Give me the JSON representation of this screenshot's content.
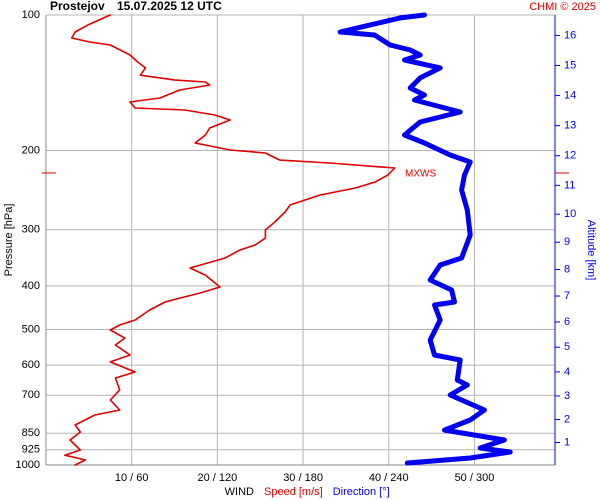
{
  "chart_data": {
    "type": "line",
    "station": "Prostejov",
    "date": "15.07.2025 12 UTC",
    "credit": "CHMI © 2025",
    "ylabel": "Pressure [hPa]",
    "y2label": "Altitude [km]",
    "legend_title": "WIND",
    "ylog": true,
    "grid": true,
    "ylim": [
      1000,
      100
    ],
    "yticks": [
      100,
      200,
      300,
      400,
      500,
      600,
      700,
      850,
      925,
      1000
    ],
    "xlim": [
      0,
      59.4
    ],
    "x2lim": [
      0,
      356.4
    ],
    "xticks": [
      {
        "value": 10,
        "label": "10 / 60"
      },
      {
        "value": 20,
        "label": "20 / 120"
      },
      {
        "value": 30,
        "label": "30 / 180"
      },
      {
        "value": 40,
        "label": "40 / 240"
      },
      {
        "value": 50,
        "label": "50 / 300"
      }
    ],
    "y2ticks": [
      1,
      2,
      3,
      4,
      5,
      6,
      7,
      8,
      9,
      10,
      11,
      12,
      13,
      14,
      15,
      16
    ],
    "max_wind": {
      "label": "MXWS",
      "pressure": 224.4
    },
    "series": [
      {
        "name": "Speed [m/s]",
        "color": "#e00000",
        "axis": "x",
        "pressure": [
          100,
          105.2,
          109.1,
          112.5,
          114.8,
          116.6,
          122.7,
          127.2,
          131.1,
          136.1,
          139.5,
          140.9,
          143.1,
          146.8,
          152.9,
          156.1,
          160.9,
          162.6,
          166.8,
          171.1,
          178.3,
          184.8,
          192.5,
          199.5,
          202.6,
          210.1,
          213.3,
          218.8,
          226.8,
          235,
          242.3,
          251.2,
          264.3,
          274,
          288.4,
          300.5,
          313.1,
          324.4,
          333,
          346.7,
          365,
          378.4,
          402.2,
          414.8,
          425.6,
          434.3,
          452.4,
          476.2,
          488.6,
          501.2,
          522.3,
          541.2,
          569.6,
          590.2,
          621.4,
          640.6,
          681,
          717,
          754.8,
          774.3,
          815,
          844.6,
          880,
          926,
          950.9,
          974.7,
          1000
        ],
        "values": [
          7.5,
          4.9,
          3.4,
          3.0,
          5.1,
          7.5,
          9.8,
          10.7,
          11.6,
          11.0,
          15.1,
          18.6,
          19.1,
          15.6,
          13.3,
          9.8,
          10.4,
          16.2,
          19.7,
          21.5,
          19.1,
          18.6,
          17.4,
          21.5,
          25.6,
          27.3,
          33.1,
          40.7,
          39.9,
          38.4,
          36.1,
          32.0,
          28.5,
          27.9,
          26.7,
          25.6,
          25.6,
          24.4,
          22.6,
          20.9,
          16.8,
          18.6,
          20.3,
          18.0,
          15.6,
          13.9,
          12.1,
          10.4,
          8.6,
          7.5,
          9.2,
          8.1,
          9.8,
          7.5,
          10.4,
          8.1,
          8.6,
          7.5,
          8.6,
          5.7,
          3.4,
          4.0,
          2.8,
          4.0,
          2.2,
          4.6,
          3.4
        ]
      },
      {
        "name": "Direction [°]",
        "color": "#0000f0",
        "axis": "x2",
        "pressure": [
          100,
          101.5,
          105.2,
          109.1,
          110.8,
          116.6,
          119.6,
          122.7,
          125.9,
          131.1,
          138,
          145.3,
          150.6,
          154.5,
          164.3,
          172.9,
          184.8,
          192.5,
          204.7,
          212.2,
          226.8,
          244.8,
          271.3,
          308.3,
          346.7,
          359.4,
          388,
          408.4,
          434.3,
          441,
          476.2,
          527.6,
          569.6,
          584.3,
          647.3,
          664,
          699,
          754.8,
          794.3,
          836.3,
          880,
          916.6,
          935.5,
          964.7,
          984.8,
          989.8
        ],
        "values": [
          265,
          248,
          227,
          206,
          230,
          241,
          255,
          262,
          251,
          276,
          262,
          255,
          265,
          258,
          290,
          262,
          251,
          265,
          283,
          297,
          293,
          291,
          295,
          297,
          291,
          276,
          269,
          284,
          286,
          272,
          276,
          269,
          272,
          290,
          288,
          295,
          283,
          307,
          297,
          279,
          321,
          304,
          325,
          297,
          262,
          253
        ]
      }
    ]
  }
}
